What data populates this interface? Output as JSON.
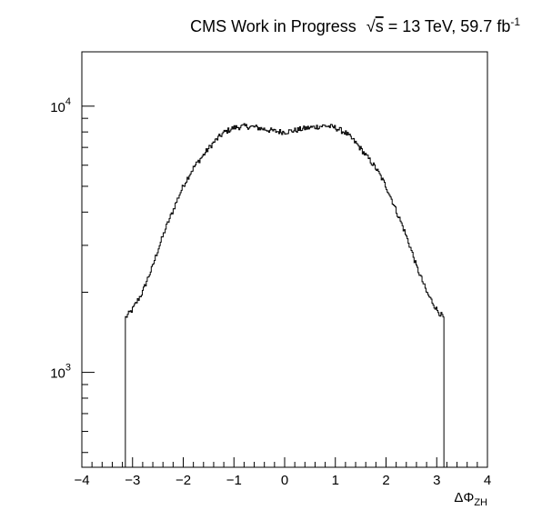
{
  "chart_data": {
    "type": "histogram",
    "title": {
      "main": "CMS Work in Progress",
      "energy_root": "√",
      "energy_var": "s",
      "energy_rest": " = 13 TeV, 59.7 fb",
      "lumi_exponent": "-1"
    },
    "xlabel": {
      "base": "ΔΦ",
      "subscript": "ZH"
    },
    "ylabel": "",
    "x_range": [
      -4,
      4
    ],
    "y_range": [
      440,
      16000
    ],
    "y_scale": "log",
    "grid": false,
    "x_ticks": [
      {
        "value": -4,
        "label": "−4"
      },
      {
        "value": -3,
        "label": "−3"
      },
      {
        "value": -2,
        "label": "−2"
      },
      {
        "value": -1,
        "label": "−1"
      },
      {
        "value": 0,
        "label": "0"
      },
      {
        "value": 1,
        "label": "1"
      },
      {
        "value": 2,
        "label": "2"
      },
      {
        "value": 3,
        "label": "3"
      },
      {
        "value": 4,
        "label": "4"
      }
    ],
    "y_ticks": [
      {
        "value": 1000,
        "base": "10",
        "exponent": "3"
      },
      {
        "value": 10000,
        "base": "10",
        "exponent": "4"
      }
    ],
    "profile_x": [
      -3.1416,
      -3.0,
      -2.8,
      -2.6,
      -2.4,
      -2.2,
      -2.0,
      -1.8,
      -1.6,
      -1.4,
      -1.2,
      -1.0,
      -0.8,
      -0.6,
      -0.4,
      -0.2,
      0.0,
      0.2,
      0.4,
      0.6,
      0.8,
      1.0,
      1.2,
      1.4,
      1.6,
      1.8,
      2.0,
      2.2,
      2.4,
      2.6,
      2.8,
      3.0,
      3.1416
    ],
    "profile_y": [
      1600,
      1720,
      2000,
      2500,
      3250,
      4050,
      5000,
      5850,
      6550,
      7300,
      7950,
      8300,
      8400,
      8350,
      8200,
      8050,
      8000,
      8100,
      8250,
      8350,
      8450,
      8300,
      7950,
      7300,
      6550,
      5850,
      5000,
      4050,
      3250,
      2500,
      2000,
      1720,
      1600
    ]
  }
}
